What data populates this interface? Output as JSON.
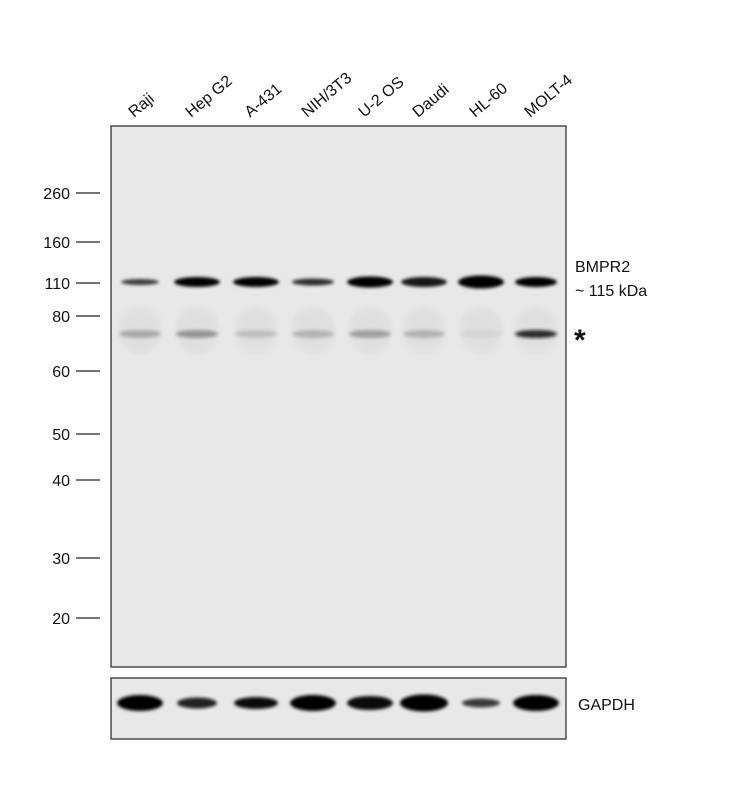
{
  "lanes": [
    "Raji",
    "Hep G2",
    "A-431",
    "NIH/3T3",
    "U-2 OS",
    "Daudi",
    "HL-60",
    "MOLT-4"
  ],
  "markers": [
    260,
    160,
    110,
    80,
    60,
    50,
    40,
    30,
    20
  ],
  "target": {
    "name": "BMPR2",
    "size": "~ 115 kDa"
  },
  "nonspecific_mark": "*",
  "loading_control": "GAPDH"
}
